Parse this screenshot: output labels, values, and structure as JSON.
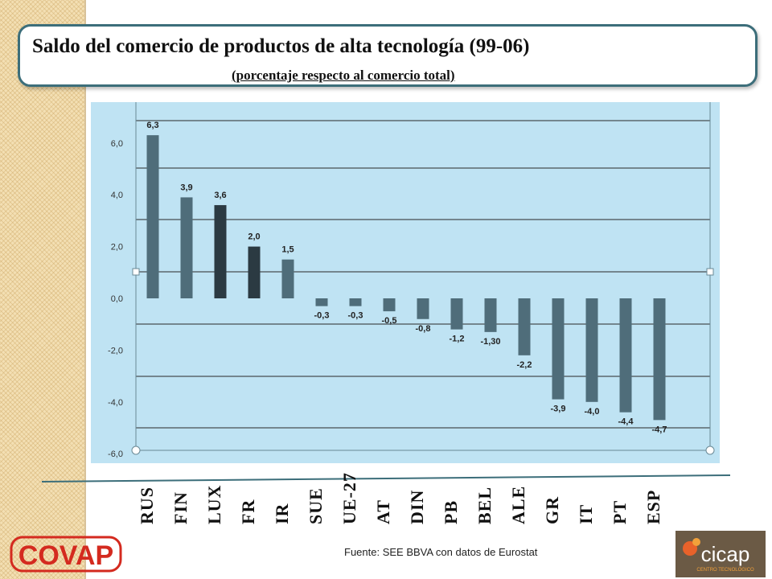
{
  "slide": {
    "title": "Saldo del comercio de productos de alta tecnología (99-06)",
    "subtitle": "(porcentaje respecto al comercio total)",
    "source": "Fuente: SEE BBVA con datos de Eurostat",
    "logos": {
      "left": {
        "text": "COVAP",
        "color": "#d42a1f"
      },
      "right": {
        "text": "cicap",
        "subtext": "CENTRO TECNOLÓGICO",
        "color": "#ffffff"
      }
    }
  },
  "chart_data": {
    "type": "bar",
    "categories": [
      "RUS",
      "FIN",
      "LUX",
      "FR",
      "IR",
      "SUE",
      "UE-27",
      "AT",
      "DIN",
      "PB",
      "BEL",
      "ALE",
      "GR",
      "IT",
      "PT",
      "ESP"
    ],
    "values": [
      6.3,
      3.9,
      3.6,
      2.0,
      1.5,
      -0.3,
      -0.3,
      -0.5,
      -0.8,
      -1.2,
      -1.3,
      -2.2,
      -3.9,
      -4.0,
      -4.4,
      -4.7
    ],
    "data_labels": [
      "6,3",
      "3,9",
      "3,6",
      "2,0",
      "1,5",
      "-0,3",
      "-0,3",
      "-0,5",
      "-0,8",
      "-1,2",
      "-1,30",
      "-2,2",
      "-3,9",
      "-4,0",
      "-4,4",
      "-4,7"
    ],
    "y_ticks": [
      6,
      4,
      2,
      0,
      -2,
      -4,
      -6
    ],
    "y_tick_labels": [
      "6,0",
      "4,0",
      "2,0",
      "0,0",
      "-2,0",
      "-4,0",
      "-6,0"
    ],
    "ylim": [
      -6,
      7.3
    ],
    "grid": true,
    "colors": {
      "plot_background": "#bfe3f3",
      "bar": "#4f6d7a",
      "bar_dark": "#2b3a42",
      "gridline": "#2a2a2a"
    },
    "dark_bars": [
      "LUX",
      "FR"
    ]
  }
}
